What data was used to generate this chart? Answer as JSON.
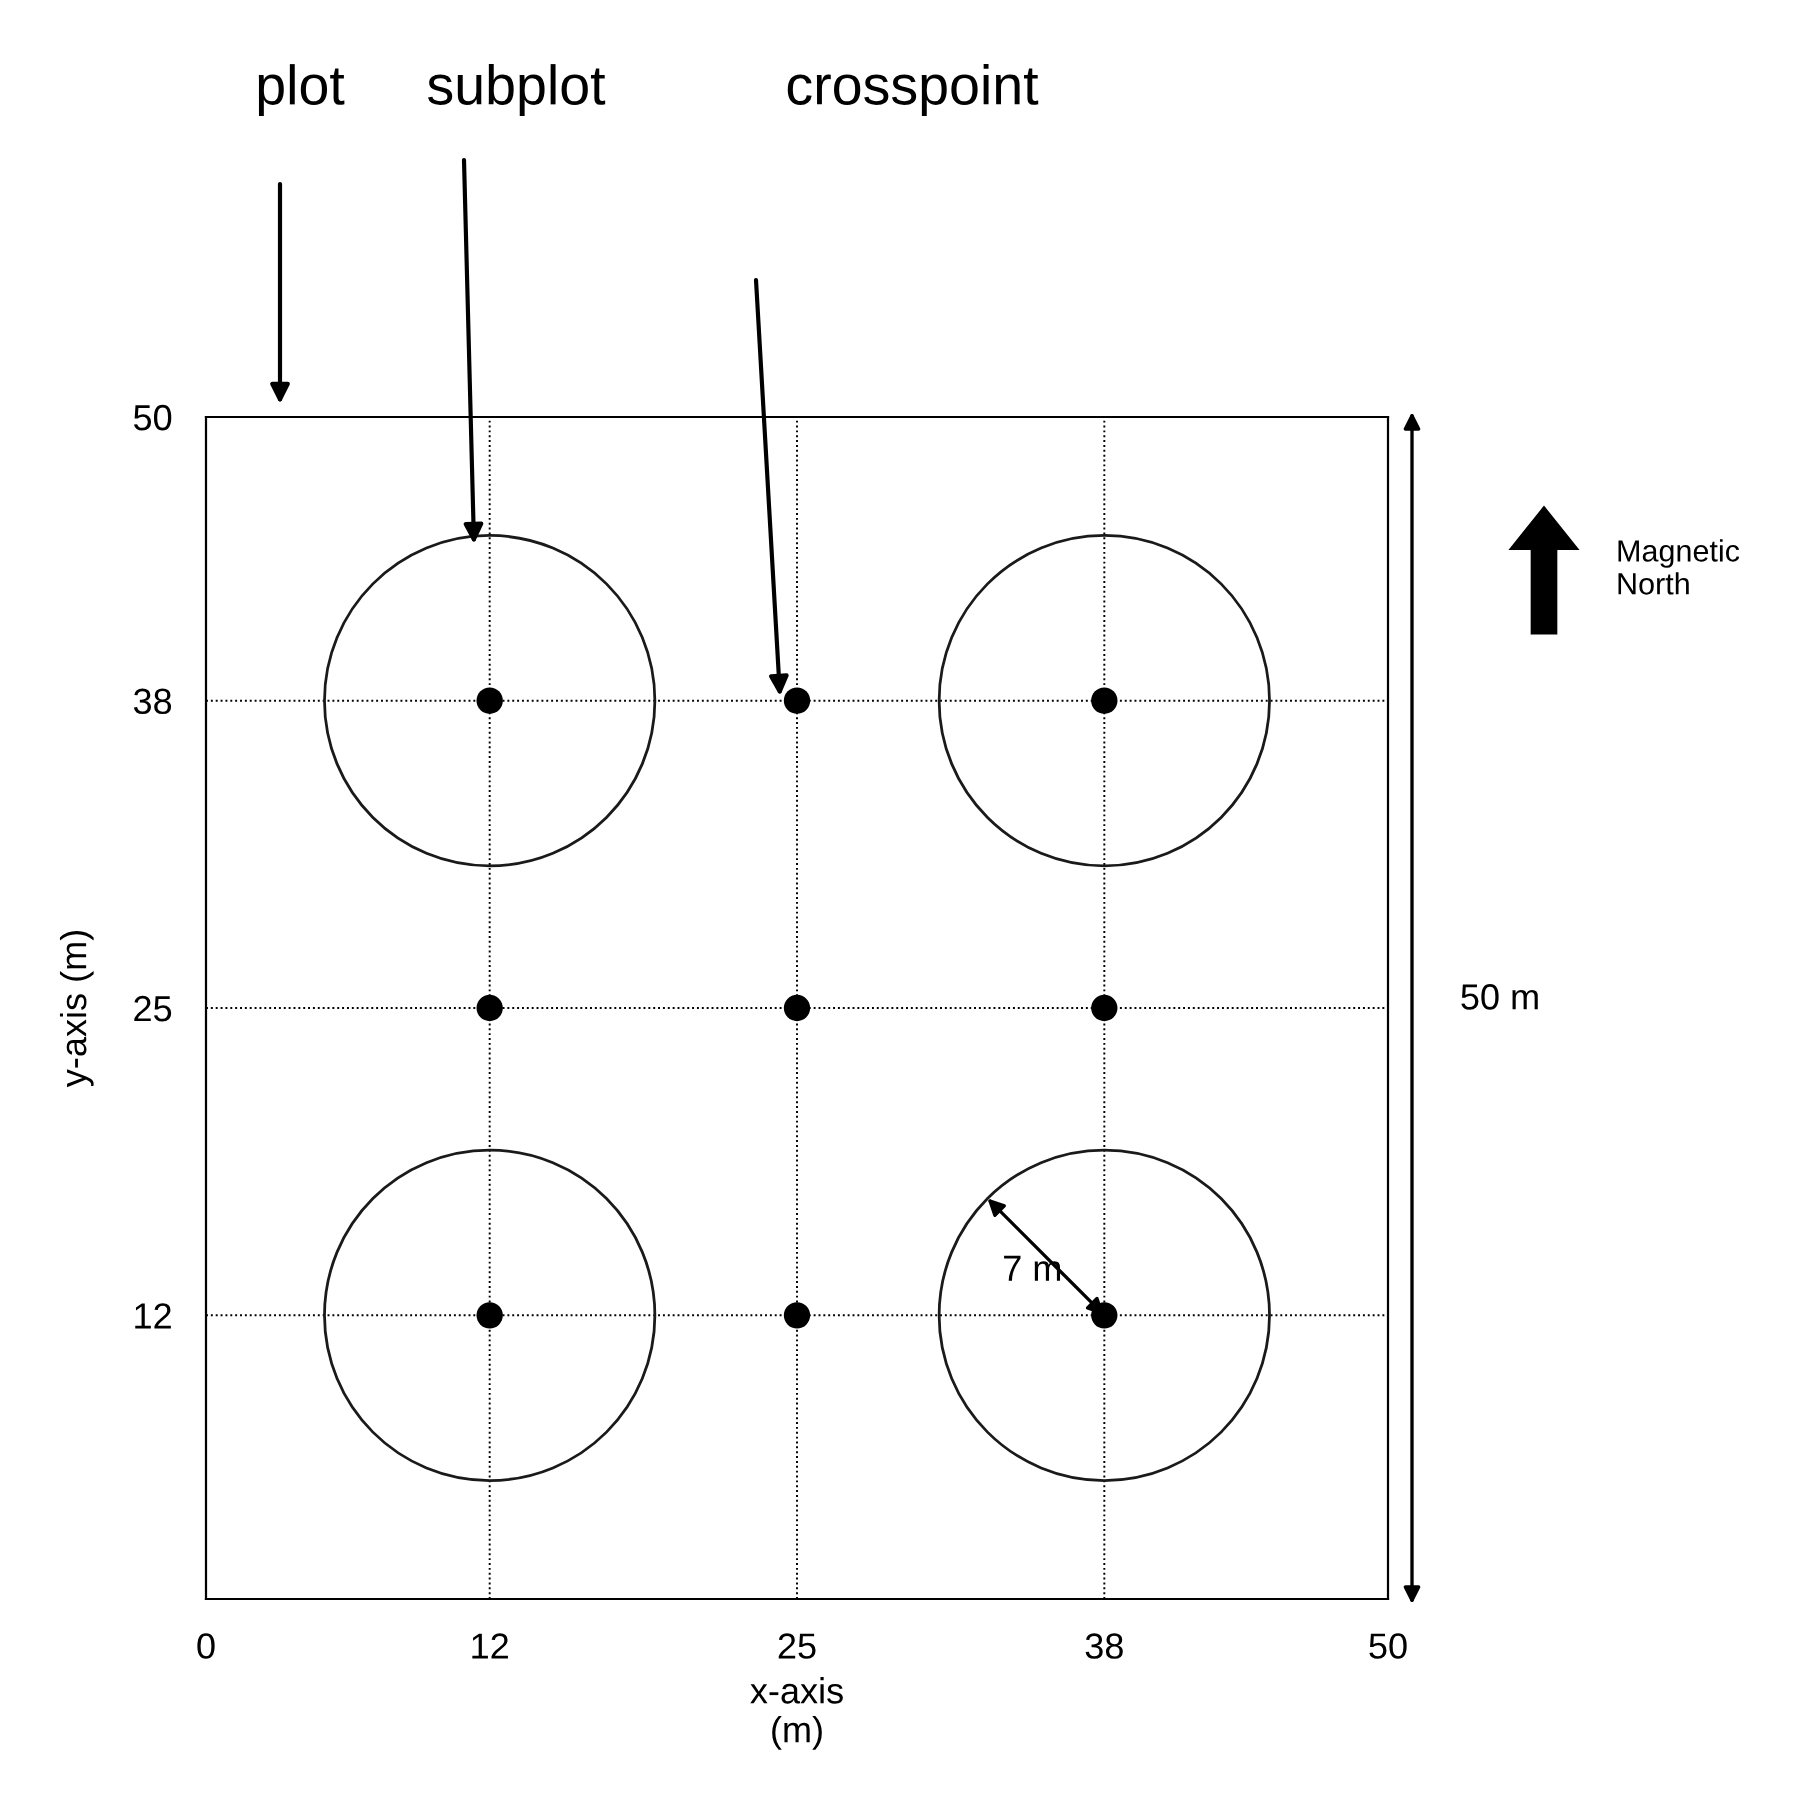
{
  "chart_data": {
    "type": "scatter",
    "xlabel": "x-axis\n(m)",
    "ylabel": "y-axis (m)",
    "xlim": [
      0,
      50
    ],
    "ylim": [
      0,
      50
    ],
    "xticks": [
      0,
      12,
      25,
      38,
      50
    ],
    "yticks": [
      12,
      25,
      38,
      50
    ],
    "grid": true,
    "marker": "circle",
    "series": [
      {
        "color": "#000000",
        "x": [
          12,
          25,
          38,
          12,
          25,
          38,
          12,
          25,
          38
        ],
        "values": [
          38,
          38,
          38,
          25,
          25,
          25,
          12,
          12,
          12
        ]
      }
    ],
    "annotations": [
      "plot",
      "subplot",
      "crosspoint",
      {
        "text": "7 m",
        "x": 38,
        "y": 12
      },
      "50 m",
      "Magnetic North"
    ]
  }
}
